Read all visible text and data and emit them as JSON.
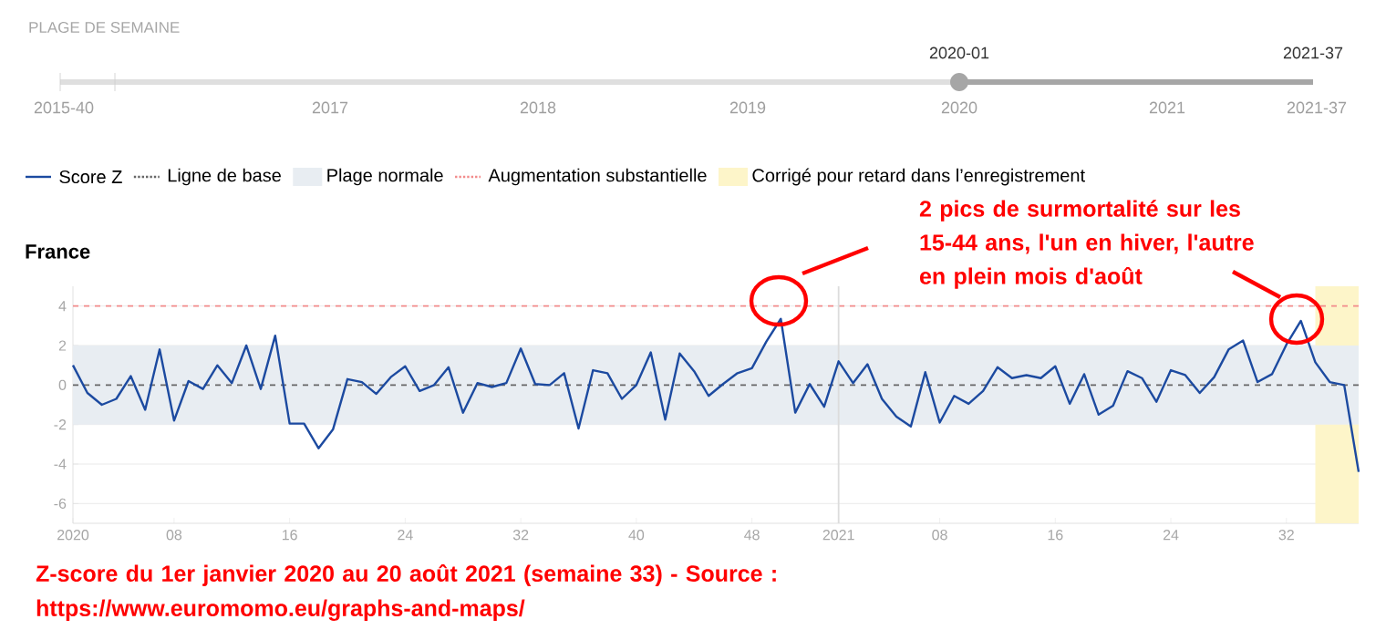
{
  "chart_data": {
    "type": "line",
    "title": "France",
    "categories": [
      "2020",
      null,
      null,
      null,
      null,
      null,
      null,
      "08",
      null,
      null,
      null,
      null,
      null,
      null,
      null,
      "16",
      null,
      null,
      null,
      null,
      null,
      null,
      null,
      "24",
      null,
      null,
      null,
      null,
      null,
      null,
      null,
      "32",
      null,
      null,
      null,
      null,
      null,
      null,
      null,
      "40",
      null,
      null,
      null,
      null,
      null,
      null,
      null,
      "48",
      null,
      null,
      null,
      null,
      null,
      "2021",
      null,
      null,
      null,
      null,
      null,
      null,
      "08",
      null,
      null,
      null,
      null,
      null,
      null,
      null,
      "16",
      null,
      null,
      null,
      null,
      null,
      null,
      null,
      "24",
      null,
      null,
      null,
      null,
      null,
      null,
      null,
      "32",
      null,
      null,
      null,
      null,
      null
    ],
    "series": [
      {
        "name": "Score Z",
        "color": "#1c4aa0",
        "values": [
          1.0,
          -0.4,
          -1.0,
          -0.7,
          0.45,
          -1.25,
          1.8,
          -1.8,
          0.2,
          -0.2,
          1.0,
          0.1,
          2.0,
          -0.2,
          2.5,
          -1.95,
          -1.95,
          -3.2,
          -2.25,
          0.3,
          0.15,
          -0.45,
          0.4,
          0.95,
          -0.3,
          0.0,
          0.9,
          -1.4,
          0.1,
          -0.1,
          0.1,
          1.85,
          0.05,
          0.0,
          0.6,
          -2.2,
          0.75,
          0.6,
          -0.7,
          0.0,
          1.65,
          -1.75,
          1.6,
          0.7,
          -0.55,
          0.05,
          0.6,
          0.85,
          2.2,
          3.35,
          -1.4,
          0.05,
          -1.1,
          1.2,
          0.1,
          1.05,
          -0.7,
          -1.6,
          -2.1,
          0.65,
          -1.9,
          -0.55,
          -0.95,
          -0.3,
          0.9,
          0.35,
          0.5,
          0.35,
          0.95,
          -0.95,
          0.55,
          -1.5,
          -1.05,
          0.7,
          0.35,
          -0.85,
          0.75,
          0.5,
          -0.4,
          0.4,
          1.8,
          2.25,
          0.15,
          0.55,
          2.05,
          3.25,
          1.15,
          0.15,
          0.0,
          -4.4
        ]
      }
    ],
    "ylim": [
      -7,
      5
    ],
    "yticks": [
      -6,
      -4,
      -2,
      0,
      2,
      4
    ],
    "grid": "y",
    "legend": "top",
    "ref_lines": [
      {
        "axis": "y",
        "value": 0,
        "label": "Ligne de base",
        "color": "#666666",
        "line_style": "dashed"
      },
      {
        "axis": "y",
        "value": 4,
        "label": "Augmentation substantielle",
        "color": "#f28b8b",
        "line_style": "dashed"
      },
      {
        "axis": "x",
        "value": "2021",
        "color": "#dcdcdc"
      }
    ],
    "bands": [
      {
        "axis": "y",
        "from": -2,
        "to": 2,
        "label": "Plage normale",
        "color": "#e8edf2"
      }
    ],
    "annotations": [
      "PLAGE DE SEMAINE",
      "2015-40",
      "2017",
      "2018",
      "2019",
      "2020",
      "2021",
      "2021-37",
      "2020-01",
      "2021-37",
      "2 pics de surmortalité sur les 15-44 ans, l'un en hiver, l'autre en plein mois d'août",
      "Z-score du 1er janvier 2020 au 20 août 2021 (semaine 33) - Source : https://www.euromomo.eu/graphs-and-maps/",
      "Corrigé pour retard dans l’enregistrement"
    ]
  }
}
